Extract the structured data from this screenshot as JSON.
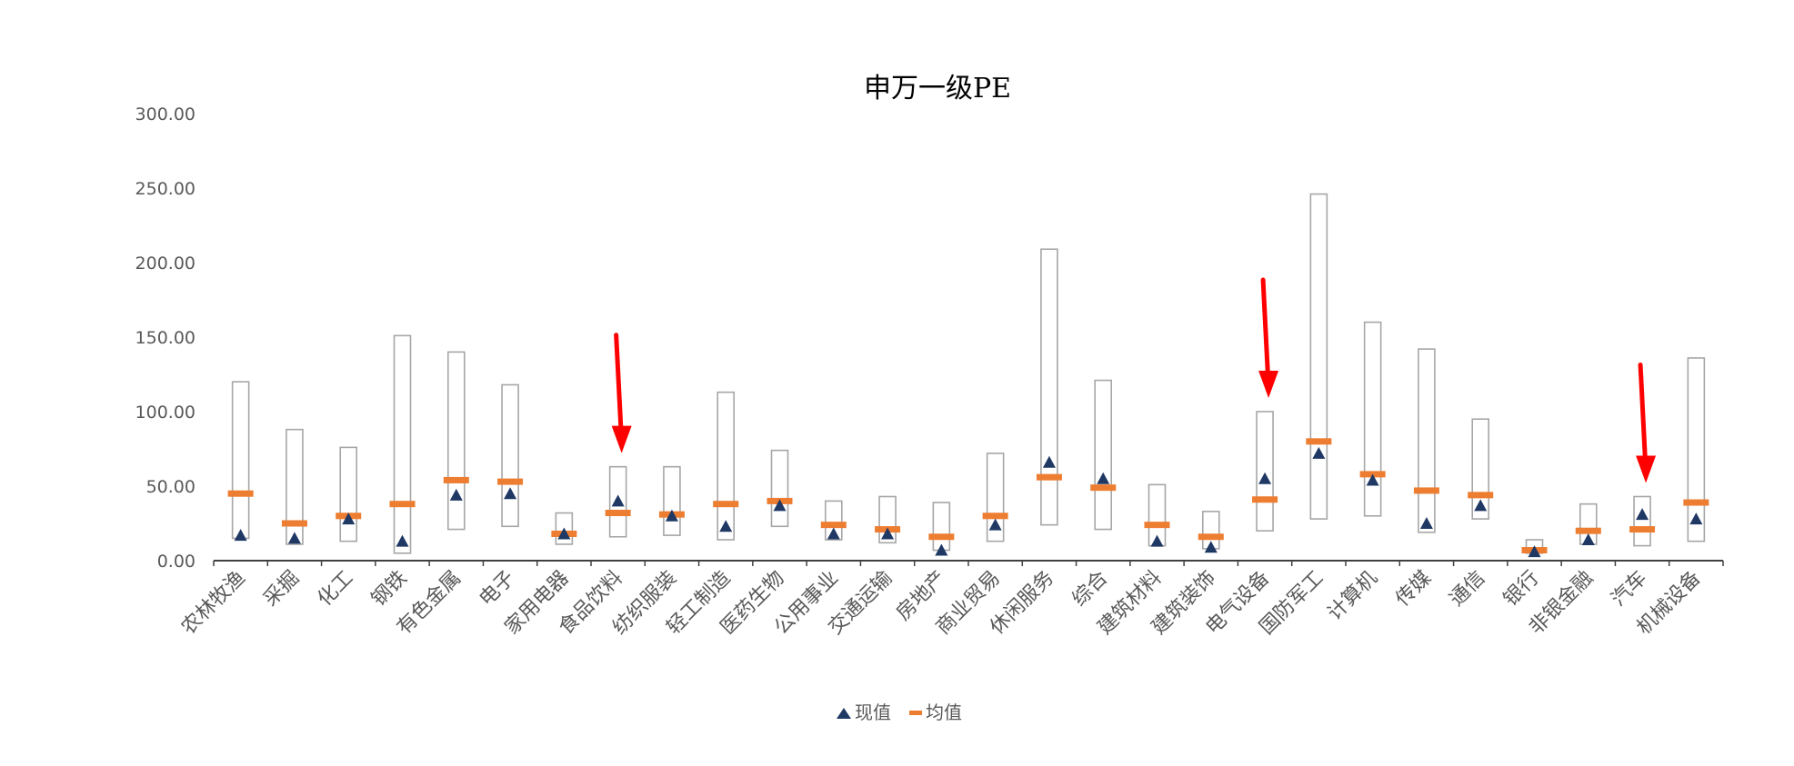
{
  "chart_data": {
    "type": "range-plot",
    "title": "申万一级PE",
    "xlabel": "",
    "ylabel": "",
    "ylim": [
      0,
      300
    ],
    "yticks": [
      0,
      50,
      100,
      150,
      200,
      250,
      300
    ],
    "ytick_labels": [
      "0.00",
      "50.00",
      "100.00",
      "150.00",
      "200.00",
      "250.00",
      "300.00"
    ],
    "grid": false,
    "legend_position": "bottom",
    "colors": {
      "range_box": "#a6a6a6",
      "current": "#1f3864",
      "mean": "#ed7d31",
      "arrow": "#ff0000",
      "axis": "#404040",
      "tick_label": "#595959",
      "title": "#000000"
    },
    "series": [
      {
        "name": "现值",
        "marker": "triangle"
      },
      {
        "name": "均值",
        "marker": "dash"
      }
    ],
    "categories": [
      "农林牧渔",
      "采掘",
      "化工",
      "钢铁",
      "有色金属",
      "电子",
      "家用电器",
      "食品饮料",
      "纺织服装",
      "轻工制造",
      "医药生物",
      "公用事业",
      "交通运输",
      "房地产",
      "商业贸易",
      "休闲服务",
      "综合",
      "建筑材料",
      "建筑装饰",
      "电气设备",
      "国防军工",
      "计算机",
      "传媒",
      "通信",
      "银行",
      "非银金融",
      "汽车",
      "机械设备"
    ],
    "min": [
      15,
      11,
      13,
      5,
      21,
      23,
      11,
      16,
      17,
      14,
      23,
      14,
      12,
      7,
      13,
      24,
      21,
      10,
      8,
      20,
      28,
      30,
      19,
      28,
      5,
      11,
      10,
      13
    ],
    "max": [
      120,
      88,
      76,
      151,
      140,
      118,
      32,
      63,
      63,
      113,
      74,
      40,
      43,
      39,
      72,
      209,
      121,
      51,
      33,
      100,
      246,
      160,
      142,
      95,
      14,
      38,
      43,
      136
    ],
    "mean": [
      45,
      25,
      30,
      38,
      54,
      53,
      18,
      32,
      31,
      38,
      40,
      24,
      21,
      16,
      30,
      56,
      49,
      24,
      16,
      41,
      80,
      58,
      47,
      44,
      7,
      20,
      21,
      39
    ],
    "current": [
      17,
      15,
      28,
      13,
      44,
      45,
      18,
      40,
      30,
      23,
      37,
      18,
      18,
      7,
      24,
      66,
      55,
      13,
      9,
      55,
      72,
      54,
      25,
      37,
      6,
      14,
      31,
      28
    ],
    "highlighted": [
      "食品饮料",
      "电气设备",
      "汽车"
    ]
  }
}
